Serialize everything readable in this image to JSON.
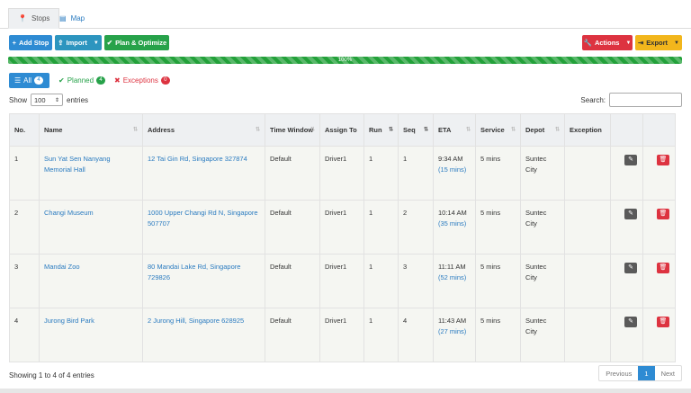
{
  "tabs": [
    {
      "label": "Stops",
      "icon": "map-pin-icon"
    },
    {
      "label": "Map",
      "icon": "map-icon"
    }
  ],
  "toolbar": {
    "add_stop": "Add Stop",
    "import": "Import",
    "plan_optimize": "Plan & Optimize",
    "actions": "Actions",
    "export": "Export"
  },
  "progress": {
    "label": "100%",
    "percent": 100
  },
  "filters": {
    "all": {
      "label": "All",
      "count": "4"
    },
    "planned": {
      "label": "Planned",
      "count": "4"
    },
    "exceptions": {
      "label": "Exceptions",
      "count": "0"
    }
  },
  "length_menu": {
    "show": "Show",
    "value": "100",
    "entries": "entries"
  },
  "search": {
    "label": "Search:",
    "value": ""
  },
  "table": {
    "headers": [
      "No.",
      "Name",
      "Address",
      "Time Window",
      "Assign To",
      "Run",
      "Seq",
      "ETA",
      "Service",
      "Depot",
      "Exception",
      "",
      ""
    ],
    "rows": [
      {
        "no": "1",
        "name": "Sun Yat Sen Nanyang Memorial Hall",
        "address": "12 Tai Gin Rd, Singapore 327874",
        "time_window": "Default",
        "assign_to": "Driver1",
        "run": "1",
        "seq": "1",
        "eta": "9:34 AM",
        "eta_mins": "(15 mins)",
        "service": "5 mins",
        "depot": "Suntec City",
        "exception": ""
      },
      {
        "no": "2",
        "name": "Changi Museum",
        "address": "1000 Upper Changi Rd N, Singapore 507707",
        "time_window": "Default",
        "assign_to": "Driver1",
        "run": "1",
        "seq": "2",
        "eta": "10:14 AM",
        "eta_mins": "(35 mins)",
        "service": "5 mins",
        "depot": "Suntec City",
        "exception": ""
      },
      {
        "no": "3",
        "name": "Mandai Zoo",
        "address": "80 Mandai Lake Rd, Singapore 729826",
        "time_window": "Default",
        "assign_to": "Driver1",
        "run": "1",
        "seq": "3",
        "eta": "11:11 AM",
        "eta_mins": "(52 mins)",
        "service": "5 mins",
        "depot": "Suntec City",
        "exception": ""
      },
      {
        "no": "4",
        "name": "Jurong Bird Park",
        "address": "2 Jurong Hill, Singapore 628925",
        "time_window": "Default",
        "assign_to": "Driver1",
        "run": "1",
        "seq": "4",
        "eta": "11:43 AM",
        "eta_mins": "(27 mins)",
        "service": "5 mins",
        "depot": "Suntec City",
        "exception": ""
      }
    ]
  },
  "footer": {
    "info": "Showing 1 to 4 of 4 entries",
    "previous": "Previous",
    "page": "1",
    "next": "Next"
  },
  "colors": {
    "primary": "#2e8bd3",
    "success": "#27a24a",
    "danger": "#dd3340",
    "warning": "#f2b61c"
  }
}
